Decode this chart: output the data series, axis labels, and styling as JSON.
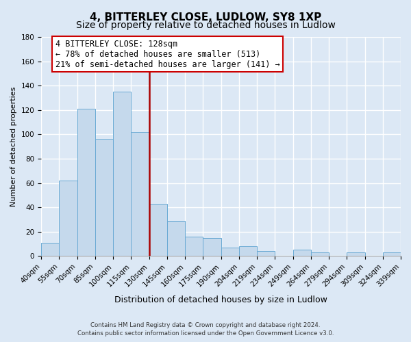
{
  "title": "4, BITTERLEY CLOSE, LUDLOW, SY8 1XP",
  "subtitle": "Size of property relative to detached houses in Ludlow",
  "xlabel": "Distribution of detached houses by size in Ludlow",
  "ylabel": "Number of detached properties",
  "bar_labels": [
    "40sqm",
    "55sqm",
    "70sqm",
    "85sqm",
    "100sqm",
    "115sqm",
    "130sqm",
    "145sqm",
    "160sqm",
    "175sqm",
    "190sqm",
    "204sqm",
    "219sqm",
    "234sqm",
    "249sqm",
    "264sqm",
    "279sqm",
    "294sqm",
    "309sqm",
    "324sqm",
    "339sqm"
  ],
  "bar_values": [
    11,
    62,
    121,
    96,
    135,
    102,
    43,
    29,
    16,
    15,
    7,
    8,
    4,
    0,
    5,
    3,
    0,
    3,
    0,
    3
  ],
  "bar_color": "#c5d9ec",
  "bar_edge_color": "#6aaad4",
  "vline_color": "#aa0000",
  "vline_pos": 6,
  "ylim": [
    0,
    180
  ],
  "yticks": [
    0,
    20,
    40,
    60,
    80,
    100,
    120,
    140,
    160,
    180
  ],
  "annotation_title": "4 BITTERLEY CLOSE: 128sqm",
  "annotation_line1": "← 78% of detached houses are smaller (513)",
  "annotation_line2": "21% of semi-detached houses are larger (141) →",
  "annotation_box_color": "#ffffff",
  "annotation_box_edge": "#cc0000",
  "footer1": "Contains HM Land Registry data © Crown copyright and database right 2024.",
  "footer2": "Contains public sector information licensed under the Open Government Licence v3.0.",
  "bg_color": "#dce8f5",
  "plot_bg_color": "#dce8f5",
  "grid_color": "#ffffff",
  "title_fontsize": 11,
  "subtitle_fontsize": 10,
  "xlabel_fontsize": 9,
  "ylabel_fontsize": 8,
  "tick_fontsize": 7.5,
  "annot_fontsize": 8.5
}
